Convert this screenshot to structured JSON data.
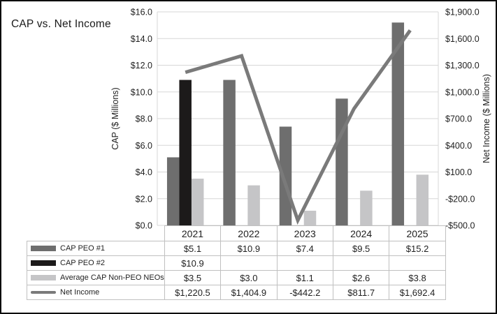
{
  "title": "CAP vs. Net Income",
  "chart_data": {
    "type": "bar+line",
    "categories": [
      "2021",
      "2022",
      "2023",
      "2024",
      "2025"
    ],
    "bar_series": [
      {
        "name": "CAP PEO #1",
        "color": "#6e6e6e",
        "slot": 0,
        "values": [
          5.1,
          10.9,
          7.4,
          9.5,
          15.2
        ]
      },
      {
        "name": "CAP PEO #2",
        "color": "#1c1a1a",
        "slot": 1,
        "values": [
          10.9,
          null,
          null,
          null,
          null
        ]
      },
      {
        "name": "Average CAP Non-PEO NEOs",
        "color": "#c5c5c7",
        "slot": 2,
        "values": [
          3.5,
          3.0,
          1.1,
          2.6,
          3.8
        ]
      }
    ],
    "line_series": {
      "name": "Net Income",
      "color": "#7a7a7a",
      "axis": "right",
      "values": [
        1220.5,
        1404.9,
        -442.2,
        811.7,
        1692.4
      ]
    },
    "left_axis": {
      "label": "CAP ($ Millions)",
      "min": 0,
      "max": 16,
      "step": 2,
      "ticks": [
        "$16.0",
        "$14.0",
        "$12.0",
        "$10.0",
        "$8.0",
        "$6.0",
        "$4.0",
        "$2.0",
        "$0.0"
      ]
    },
    "right_axis": {
      "label": "Net Income ($ Millions)",
      "min": -500,
      "max": 1900,
      "step": 300,
      "ticks": [
        "$1,900.0",
        "$1,600.0",
        "$1,300.0",
        "$1,000.0",
        "$700.0",
        "$400.0",
        "$100.0",
        "-$200.0",
        "-$500.0"
      ]
    },
    "grid": true,
    "legend_position": "table-left"
  },
  "table": {
    "header": [
      "2021",
      "2022",
      "2023",
      "2024",
      "2025"
    ],
    "rows": [
      {
        "label": "CAP PEO #1",
        "swatch": "bar",
        "color": "#6e6e6e",
        "values": [
          "$5.1",
          "$10.9",
          "$7.4",
          "$9.5",
          "$15.2"
        ]
      },
      {
        "label": "CAP PEO #2",
        "swatch": "bar",
        "color": "#1c1a1a",
        "values": [
          "$10.9",
          "",
          "",
          "",
          ""
        ]
      },
      {
        "label": "Average CAP Non-PEO NEOs",
        "swatch": "bar",
        "color": "#c5c5c7",
        "values": [
          "$3.5",
          "$3.0",
          "$1.1",
          "$2.6",
          "$3.8"
        ]
      },
      {
        "label": "Net Income",
        "swatch": "line",
        "color": "#7a7a7a",
        "values": [
          "$1,220.5",
          "$1,404.9",
          "-$442.2",
          "$811.7",
          "$1,692.4"
        ]
      }
    ]
  },
  "colors": {
    "frame_border": "#0d0d0d",
    "gridline": "#d7d7d7",
    "table_border": "#c0c0c0",
    "text": "#1f1f1f"
  }
}
